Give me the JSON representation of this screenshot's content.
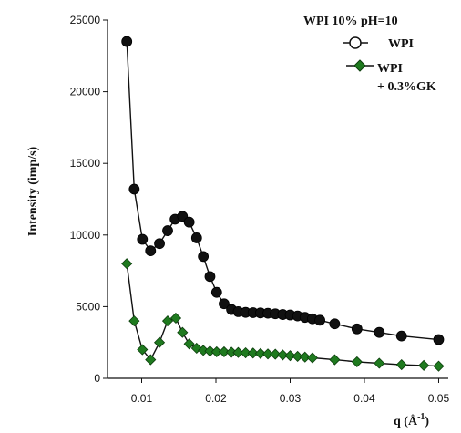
{
  "chart_data": {
    "type": "scatter",
    "title": "WPI 10% pH=10",
    "xlabel": "q (Å",
    "xlabel_sup": "-1",
    "xlabel_close": ")",
    "ylabel": "Intensity (imp/s)",
    "xlim": [
      0.0054,
      0.0508
    ],
    "ylim": [
      0,
      25000
    ],
    "xticks": [
      0.01,
      0.02,
      0.03,
      0.04,
      0.05
    ],
    "xtick_labels": [
      "0.01",
      "0.02",
      "0.03",
      "0.04",
      "0.05"
    ],
    "yticks": [
      0,
      5000,
      10000,
      15000,
      20000,
      25000
    ],
    "ytick_labels": [
      "0",
      "5000",
      "10000",
      "15000",
      "20000",
      "25000"
    ],
    "grid": false,
    "legend_position": "top-right",
    "series": [
      {
        "name": "WPI",
        "marker": "circle",
        "color": "#111111",
        "legend_color": "#ffffff",
        "x": [
          0.008,
          0.009,
          0.0101,
          0.0112,
          0.0124,
          0.0135,
          0.0145,
          0.0155,
          0.0164,
          0.0174,
          0.0183,
          0.0192,
          0.0201,
          0.0211,
          0.0221,
          0.023,
          0.024,
          0.025,
          0.026,
          0.027,
          0.028,
          0.029,
          0.03,
          0.031,
          0.032,
          0.033,
          0.034,
          0.036,
          0.039,
          0.042,
          0.045,
          0.05
        ],
        "y": [
          23500,
          13200,
          9700,
          8900,
          9400,
          10300,
          11100,
          11300,
          10900,
          9800,
          8500,
          7100,
          6000,
          5200,
          4800,
          4650,
          4600,
          4580,
          4560,
          4540,
          4500,
          4450,
          4420,
          4350,
          4250,
          4150,
          4050,
          3800,
          3450,
          3200,
          2950,
          2700
        ]
      },
      {
        "name": "WPI\n+ 0.3%GK",
        "name_line1": "WPI",
        "name_line2": "+ 0.3%GK",
        "marker": "diamond",
        "color": "#1f7a1f",
        "x": [
          0.008,
          0.009,
          0.0101,
          0.0112,
          0.0124,
          0.0135,
          0.0146,
          0.0155,
          0.0164,
          0.0174,
          0.0183,
          0.0192,
          0.0201,
          0.0211,
          0.0221,
          0.023,
          0.024,
          0.025,
          0.026,
          0.027,
          0.028,
          0.029,
          0.03,
          0.031,
          0.032,
          0.033,
          0.036,
          0.039,
          0.042,
          0.045,
          0.048,
          0.05
        ],
        "y": [
          8000,
          4000,
          2000,
          1300,
          2500,
          4000,
          4200,
          3200,
          2400,
          2100,
          1950,
          1900,
          1850,
          1850,
          1820,
          1800,
          1780,
          1760,
          1730,
          1700,
          1680,
          1630,
          1580,
          1530,
          1480,
          1430,
          1300,
          1150,
          1050,
          950,
          900,
          850
        ]
      }
    ]
  }
}
